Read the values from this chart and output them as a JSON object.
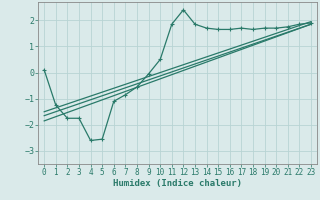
{
  "xlabel": "Humidex (Indice chaleur)",
  "bg_color": "#daeaea",
  "grid_color": "#b8d4d4",
  "line_color": "#2a7a6a",
  "xlim": [
    -0.5,
    23.5
  ],
  "ylim": [
    -3.5,
    2.7
  ],
  "xticks": [
    0,
    1,
    2,
    3,
    4,
    5,
    6,
    7,
    8,
    9,
    10,
    11,
    12,
    13,
    14,
    15,
    16,
    17,
    18,
    19,
    20,
    21,
    22,
    23
  ],
  "yticks": [
    -3,
    -2,
    -1,
    0,
    1,
    2
  ],
  "curve_x": [
    0,
    1,
    2,
    3,
    4,
    5,
    6,
    7,
    8,
    9,
    10,
    11,
    12,
    13,
    14,
    15,
    16,
    17,
    18,
    19,
    20,
    21,
    22,
    23
  ],
  "curve_y": [
    0.1,
    -1.25,
    -1.75,
    -1.75,
    -2.6,
    -2.55,
    -1.1,
    -0.85,
    -0.55,
    -0.05,
    0.5,
    1.85,
    2.4,
    1.85,
    1.7,
    1.65,
    1.65,
    1.7,
    1.65,
    1.7,
    1.7,
    1.75,
    1.85,
    1.9
  ],
  "line1_x": [
    0,
    23
  ],
  "line1_y": [
    -1.5,
    1.95
  ],
  "line2_x": [
    0,
    23
  ],
  "line2_y": [
    -1.65,
    1.85
  ],
  "line3_x": [
    0,
    23
  ],
  "line3_y": [
    -1.85,
    1.85
  ]
}
